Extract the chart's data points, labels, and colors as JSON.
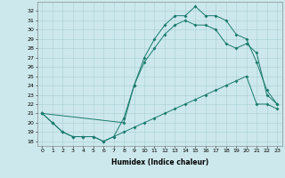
{
  "top_x": [
    0,
    1,
    2,
    3,
    4,
    5,
    6,
    7,
    8,
    9,
    10,
    11,
    12,
    13,
    14,
    15,
    16,
    17,
    18,
    19,
    20,
    21,
    22,
    23
  ],
  "top_y": [
    21.0,
    20.0,
    19.0,
    18.5,
    18.5,
    18.5,
    18.0,
    18.5,
    20.5,
    24.0,
    27.0,
    29.0,
    30.5,
    31.5,
    31.5,
    32.5,
    31.5,
    31.5,
    31.0,
    29.5,
    29.0,
    26.5,
    23.5,
    22.0
  ],
  "mid_x": [
    0,
    8,
    9,
    10,
    11,
    12,
    13,
    14,
    15,
    16,
    17,
    18,
    19,
    20,
    21,
    22,
    23
  ],
  "mid_y": [
    21.0,
    20.0,
    24.0,
    26.5,
    28.0,
    29.5,
    30.5,
    31.0,
    30.5,
    30.5,
    30.0,
    28.5,
    28.0,
    28.5,
    27.5,
    23.0,
    22.0
  ],
  "bot_x": [
    0,
    1,
    2,
    3,
    4,
    5,
    6,
    7,
    8,
    9,
    10,
    11,
    12,
    13,
    14,
    15,
    16,
    17,
    18,
    19,
    20,
    21,
    22,
    23
  ],
  "bot_y": [
    21.0,
    20.0,
    19.0,
    18.5,
    18.5,
    18.5,
    18.0,
    18.5,
    19.0,
    19.5,
    20.0,
    20.5,
    21.0,
    21.5,
    22.0,
    22.5,
    23.0,
    23.5,
    24.0,
    24.5,
    25.0,
    22.0,
    22.0,
    21.5
  ],
  "color": "#1a7a6e",
  "bg_color": "#cce8ec",
  "grid_color": "#aacfd4",
  "xlabel": "Humidex (Indice chaleur)",
  "xlim": [
    -0.5,
    23.5
  ],
  "ylim": [
    17.5,
    33.0
  ],
  "xticks": [
    0,
    1,
    2,
    3,
    4,
    5,
    6,
    7,
    8,
    9,
    10,
    11,
    12,
    13,
    14,
    15,
    16,
    17,
    18,
    19,
    20,
    21,
    22,
    23
  ],
  "yticks": [
    18,
    19,
    20,
    21,
    22,
    23,
    24,
    25,
    26,
    27,
    28,
    29,
    30,
    31,
    32
  ],
  "xlabel_fontsize": 5.5,
  "tick_fontsize": 4.5,
  "linewidth": 0.7,
  "markersize": 2.0
}
